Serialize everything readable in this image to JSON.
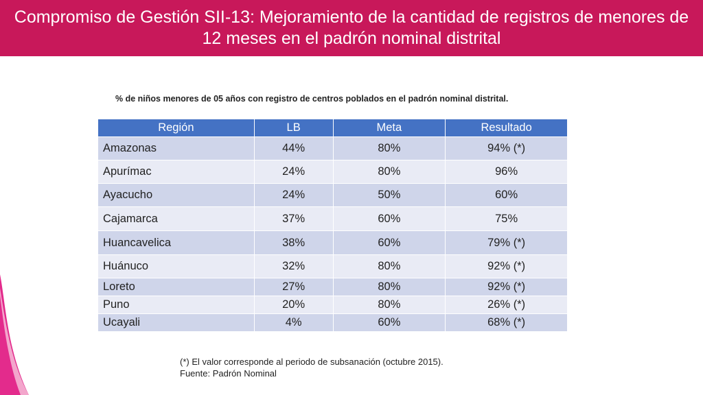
{
  "slide": {
    "title": "Compromiso de Gestión SII-13: Mejoramiento de la cantidad de registros de menores de 12 meses en el padrón nominal distrital",
    "accent_color": "#c8185a"
  },
  "table": {
    "caption": "% de niños menores de 05 años con registro de centros poblados en el padrón nominal distrital.",
    "headers": [
      "Región",
      "LB",
      "Meta",
      "Resultado"
    ],
    "header_color": "#4472c4",
    "rows": [
      {
        "region": "Amazonas",
        "lb": "44%",
        "meta": "80%",
        "resultado": "94% (*)"
      },
      {
        "region": "Apurímac",
        "lb": "24%",
        "meta": "80%",
        "resultado": "96%"
      },
      {
        "region": "Ayacucho",
        "lb": "24%",
        "meta": "50%",
        "resultado": "60%"
      },
      {
        "region": "Cajamarca",
        "lb": "37%",
        "meta": "60%",
        "resultado": "75%"
      },
      {
        "region": "Huancavelica",
        "lb": "38%",
        "meta": "60%",
        "resultado": "79% (*)"
      },
      {
        "region": "Huánuco",
        "lb": "32%",
        "meta": "80%",
        "resultado": "92% (*)"
      },
      {
        "region": "Loreto",
        "lb": "27%",
        "meta": "80%",
        "resultado": "92% (*)"
      },
      {
        "region": "Puno",
        "lb": "20%",
        "meta": "80%",
        "resultado": "26% (*)"
      },
      {
        "region": "Ucayali",
        "lb": "4%",
        "meta": "60%",
        "resultado": "68% (*)"
      }
    ]
  },
  "notes": {
    "line1": "(*) El valor corresponde al periodo de subsanación (octubre 2015).",
    "line2": "Fuente: Padrón Nominal"
  }
}
